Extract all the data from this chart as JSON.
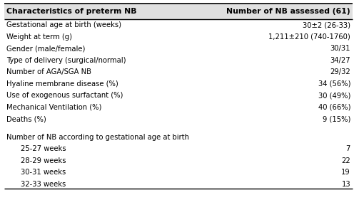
{
  "col1_header": "Characteristics of preterm NB",
  "col2_header": "Number of NB assessed (61)",
  "rows": [
    {
      "label": "Gestational age at birth (weeks)",
      "value": "30±2 (26-33)",
      "indent": false
    },
    {
      "label": "Weight at term (g)",
      "value": "1,211±210 (740-1760)",
      "indent": false
    },
    {
      "label": "Gender (male/female)",
      "value": "30/31",
      "indent": false
    },
    {
      "label": "Type of delivery (surgical/normal)",
      "value": "34/27",
      "indent": false
    },
    {
      "label": "Number of AGA/SGA NB",
      "value": "29/32",
      "indent": false
    },
    {
      "label": "Hyaline membrane disease (%)",
      "value": "34 (56%)",
      "indent": false
    },
    {
      "label": "Use of exogenous surfactant (%)",
      "value": "30 (49%)",
      "indent": false
    },
    {
      "label": "Mechanical Ventilation (%)",
      "value": "40 (66%)",
      "indent": false
    },
    {
      "label": "Deaths (%)",
      "value": "9 (15%)",
      "indent": false
    },
    {
      "label": "Number of NB according to gestational age at birth",
      "value": "",
      "indent": false
    },
    {
      "label": "25-27 weeks",
      "value": "7",
      "indent": true
    },
    {
      "label": "28-29 weeks",
      "value": "22",
      "indent": true
    },
    {
      "label": "30-31 weeks",
      "value": "19",
      "indent": true
    },
    {
      "label": "32-33 weeks",
      "value": "13",
      "indent": true
    }
  ],
  "background_color": "#ffffff",
  "header_bg_color": "#e0e0e0",
  "text_color": "#000000",
  "font_size": 7.2,
  "header_font_size": 7.8,
  "fig_width": 4.96,
  "fig_height": 2.81,
  "dpi": 100
}
